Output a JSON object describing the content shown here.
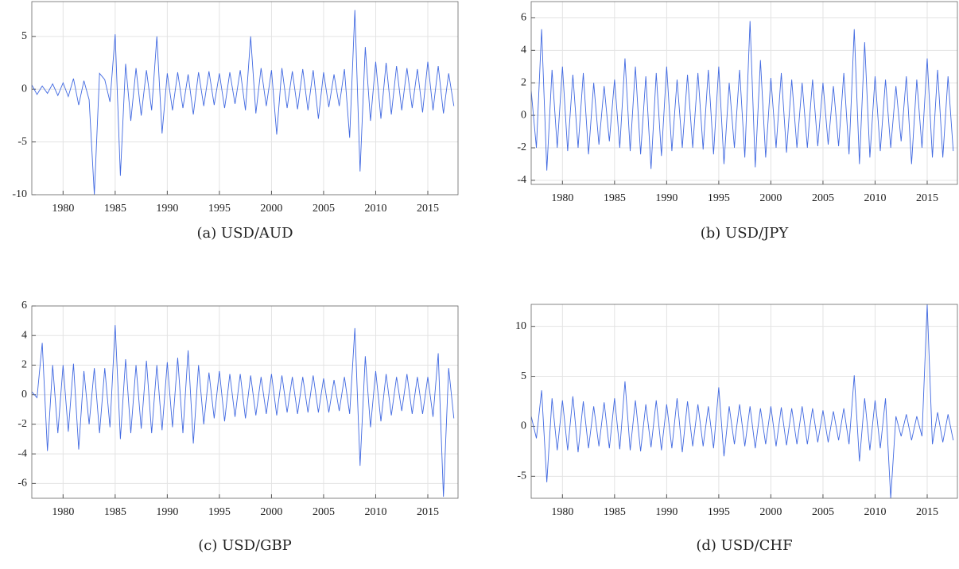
{
  "chart_data": [
    {
      "type": "line",
      "caption": "(a) USD/AUD",
      "color": "#4169e1",
      "grid": true,
      "xlim": [
        1977,
        2017.9
      ],
      "xticks": [
        1980,
        1985,
        1990,
        1995,
        2000,
        2005,
        2010,
        2015
      ],
      "ylim": [
        -10,
        8.3
      ],
      "yticks": [
        -10,
        -5,
        0,
        5
      ],
      "x": [
        1977,
        1977.5,
        1978,
        1978.5,
        1979,
        1979.5,
        1980,
        1980.5,
        1981,
        1981.5,
        1982,
        1982.5,
        1983,
        1983.5,
        1984,
        1984.5,
        1985,
        1985.5,
        1986,
        1986.5,
        1987,
        1987.5,
        1988,
        1988.5,
        1989,
        1989.5,
        1990,
        1990.5,
        1991,
        1991.5,
        1992,
        1992.5,
        1993,
        1993.5,
        1994,
        1994.5,
        1995,
        1995.5,
        1996,
        1996.5,
        1997,
        1997.5,
        1998,
        1998.5,
        1999,
        1999.5,
        2000,
        2000.5,
        2001,
        2001.5,
        2002,
        2002.5,
        2003,
        2003.5,
        2004,
        2004.5,
        2005,
        2005.5,
        2006,
        2006.5,
        2007,
        2007.5,
        2008,
        2008.5,
        2009,
        2009.5,
        2010,
        2010.5,
        2011,
        2011.5,
        2012,
        2012.5,
        2013,
        2013.5,
        2014,
        2014.5,
        2015,
        2015.5,
        2016,
        2016.5,
        2017,
        2017.5
      ],
      "values": [
        0.4,
        -0.5,
        0.3,
        -0.4,
        0.5,
        -0.6,
        0.6,
        -0.7,
        1.0,
        -1.5,
        0.8,
        -1.0,
        -10,
        1.5,
        0.9,
        -1.2,
        5.2,
        -8.2,
        2.4,
        -3.0,
        2.0,
        -2.5,
        1.8,
        -2.0,
        5.0,
        -4.2,
        1.5,
        -2.0,
        1.6,
        -1.8,
        1.4,
        -2.4,
        1.6,
        -1.6,
        1.7,
        -1.5,
        1.5,
        -1.8,
        1.6,
        -1.4,
        1.8,
        -2.0,
        5.0,
        -2.3,
        2.0,
        -1.6,
        1.8,
        -4.3,
        2.0,
        -1.8,
        1.7,
        -1.9,
        1.9,
        -2.0,
        1.8,
        -2.8,
        1.6,
        -1.7,
        1.4,
        -1.6,
        1.9,
        -4.6,
        7.5,
        -7.8,
        4.0,
        -3.0,
        2.6,
        -2.8,
        2.5,
        -2.4,
        2.2,
        -2.0,
        2.0,
        -1.8,
        1.9,
        -2.2,
        2.6,
        -2.0,
        2.2,
        -2.3,
        1.5,
        -1.6
      ]
    },
    {
      "type": "line",
      "caption": "(b) USD/JPY",
      "color": "#4169e1",
      "grid": true,
      "xlim": [
        1977,
        2017.9
      ],
      "xticks": [
        1980,
        1985,
        1990,
        1995,
        2000,
        2005,
        2010,
        2015
      ],
      "ylim": [
        -4.25,
        7
      ],
      "yticks": [
        -4,
        -2,
        0,
        2,
        4,
        6
      ],
      "x": [
        1977,
        1977.5,
        1978,
        1978.5,
        1979,
        1979.5,
        1980,
        1980.5,
        1981,
        1981.5,
        1982,
        1982.5,
        1983,
        1983.5,
        1984,
        1984.5,
        1985,
        1985.5,
        1986,
        1986.5,
        1987,
        1987.5,
        1988,
        1988.5,
        1989,
        1989.5,
        1990,
        1990.5,
        1991,
        1991.5,
        1992,
        1992.5,
        1993,
        1993.5,
        1994,
        1994.5,
        1995,
        1995.5,
        1996,
        1996.5,
        1997,
        1997.5,
        1998,
        1998.5,
        1999,
        1999.5,
        2000,
        2000.5,
        2001,
        2001.5,
        2002,
        2002.5,
        2003,
        2003.5,
        2004,
        2004.5,
        2005,
        2005.5,
        2006,
        2006.5,
        2007,
        2007.5,
        2008,
        2008.5,
        2009,
        2009.5,
        2010,
        2010.5,
        2011,
        2011.5,
        2012,
        2012.5,
        2013,
        2013.5,
        2014,
        2014.5,
        2015,
        2015.5,
        2016,
        2016.5,
        2017,
        2017.5
      ],
      "values": [
        1.5,
        -2.0,
        5.3,
        -3.4,
        2.8,
        -2.0,
        3.0,
        -2.2,
        2.5,
        -2.0,
        2.6,
        -2.4,
        2.0,
        -1.8,
        1.8,
        -1.6,
        2.2,
        -2.0,
        3.5,
        -2.2,
        3.0,
        -2.4,
        2.4,
        -3.3,
        2.6,
        -2.5,
        3.0,
        -2.2,
        2.2,
        -2.0,
        2.5,
        -2.0,
        2.6,
        -2.1,
        2.8,
        -2.4,
        3.0,
        -3.0,
        2.0,
        -2.0,
        2.8,
        -2.6,
        5.8,
        -3.2,
        3.4,
        -2.6,
        2.3,
        -2.0,
        2.6,
        -2.3,
        2.2,
        -2.0,
        2.0,
        -2.0,
        2.2,
        -1.9,
        2.0,
        -1.8,
        1.8,
        -1.9,
        2.6,
        -2.4,
        5.3,
        -3.0,
        4.5,
        -2.6,
        2.4,
        -2.2,
        2.2,
        -2.0,
        1.8,
        -1.6,
        2.4,
        -3.0,
        2.2,
        -2.0,
        3.5,
        -2.6,
        2.8,
        -2.6,
        2.4,
        -2.2
      ]
    },
    {
      "type": "line",
      "caption": "(c) USD/GBP",
      "color": "#4169e1",
      "grid": true,
      "xlim": [
        1977,
        2017.9
      ],
      "xticks": [
        1980,
        1985,
        1990,
        1995,
        2000,
        2005,
        2010,
        2015
      ],
      "ylim": [
        -7,
        6
      ],
      "yticks": [
        -6,
        -4,
        -2,
        0,
        2,
        4,
        6
      ],
      "x": [
        1977,
        1977.5,
        1978,
        1978.5,
        1979,
        1979.5,
        1980,
        1980.5,
        1981,
        1981.5,
        1982,
        1982.5,
        1983,
        1983.5,
        1984,
        1984.5,
        1985,
        1985.5,
        1986,
        1986.5,
        1987,
        1987.5,
        1988,
        1988.5,
        1989,
        1989.5,
        1990,
        1990.5,
        1991,
        1991.5,
        1992,
        1992.5,
        1993,
        1993.5,
        1994,
        1994.5,
        1995,
        1995.5,
        1996,
        1996.5,
        1997,
        1997.5,
        1998,
        1998.5,
        1999,
        1999.5,
        2000,
        2000.5,
        2001,
        2001.5,
        2002,
        2002.5,
        2003,
        2003.5,
        2004,
        2004.5,
        2005,
        2005.5,
        2006,
        2006.5,
        2007,
        2007.5,
        2008,
        2008.5,
        2009,
        2009.5,
        2010,
        2010.5,
        2011,
        2011.5,
        2012,
        2012.5,
        2013,
        2013.5,
        2014,
        2014.5,
        2015,
        2015.5,
        2016,
        2016.5,
        2017,
        2017.5
      ],
      "values": [
        0.2,
        -0.2,
        3.5,
        -3.8,
        2.0,
        -2.6,
        2.0,
        -2.5,
        2.1,
        -3.7,
        1.6,
        -2.0,
        1.8,
        -2.6,
        1.8,
        -2.2,
        4.7,
        -3.0,
        2.4,
        -2.6,
        2.0,
        -2.3,
        2.3,
        -2.6,
        2.0,
        -2.4,
        2.2,
        -2.2,
        2.5,
        -2.6,
        3.0,
        -3.3,
        2.0,
        -2.0,
        1.5,
        -1.6,
        1.6,
        -1.8,
        1.4,
        -1.5,
        1.4,
        -1.6,
        1.3,
        -1.4,
        1.2,
        -1.3,
        1.4,
        -1.4,
        1.3,
        -1.2,
        1.2,
        -1.3,
        1.2,
        -1.2,
        1.3,
        -1.2,
        1.1,
        -1.2,
        1.0,
        -1.1,
        1.2,
        -1.3,
        4.5,
        -4.8,
        2.6,
        -2.2,
        1.6,
        -1.8,
        1.4,
        -1.4,
        1.2,
        -1.1,
        1.4,
        -1.3,
        1.2,
        -1.3,
        1.2,
        -1.5,
        2.8,
        -6.9,
        1.8,
        -1.6
      ]
    },
    {
      "type": "line",
      "caption": "(d) USD/CHF",
      "color": "#4169e1",
      "grid": true,
      "xlim": [
        1977,
        2017.9
      ],
      "xticks": [
        1980,
        1985,
        1990,
        1995,
        2000,
        2005,
        2010,
        2015
      ],
      "ylim": [
        -7.2,
        12.2
      ],
      "yticks": [
        -5,
        0,
        5,
        10
      ],
      "x": [
        1977,
        1977.5,
        1978,
        1978.5,
        1979,
        1979.5,
        1980,
        1980.5,
        1981,
        1981.5,
        1982,
        1982.5,
        1983,
        1983.5,
        1984,
        1984.5,
        1985,
        1985.5,
        1986,
        1986.5,
        1987,
        1987.5,
        1988,
        1988.5,
        1989,
        1989.5,
        1990,
        1990.5,
        1991,
        1991.5,
        1992,
        1992.5,
        1993,
        1993.5,
        1994,
        1994.5,
        1995,
        1995.5,
        1996,
        1996.5,
        1997,
        1997.5,
        1998,
        1998.5,
        1999,
        1999.5,
        2000,
        2000.5,
        2001,
        2001.5,
        2002,
        2002.5,
        2003,
        2003.5,
        2004,
        2004.5,
        2005,
        2005.5,
        2006,
        2006.5,
        2007,
        2007.5,
        2008,
        2008.5,
        2009,
        2009.5,
        2010,
        2010.5,
        2011,
        2011.5,
        2012,
        2012.5,
        2013,
        2013.5,
        2014,
        2014.5,
        2015,
        2015.5,
        2016,
        2016.5,
        2017,
        2017.5
      ],
      "values": [
        1.0,
        -1.2,
        3.6,
        -5.6,
        2.8,
        -2.4,
        2.6,
        -2.4,
        3.0,
        -2.6,
        2.5,
        -2.2,
        2.0,
        -2.0,
        2.4,
        -2.2,
        2.8,
        -2.3,
        4.5,
        -2.4,
        2.6,
        -2.5,
        2.2,
        -2.1,
        2.6,
        -2.4,
        2.2,
        -2.2,
        2.8,
        -2.6,
        2.5,
        -2.0,
        2.2,
        -2.0,
        2.0,
        -2.2,
        3.9,
        -3.0,
        2.0,
        -1.8,
        2.2,
        -2.0,
        2.0,
        -2.2,
        1.8,
        -1.8,
        2.0,
        -2.0,
        1.9,
        -1.9,
        1.8,
        -1.8,
        2.0,
        -1.8,
        1.8,
        -1.6,
        1.6,
        -1.6,
        1.5,
        -1.4,
        1.8,
        -1.8,
        5.1,
        -3.5,
        2.8,
        -2.4,
        2.6,
        -2.2,
        2.8,
        -7.2,
        1.0,
        -1.0,
        1.2,
        -1.4,
        1.0,
        -1.0,
        12.2,
        -1.8,
        1.4,
        -1.6,
        1.2,
        -1.4
      ]
    }
  ]
}
